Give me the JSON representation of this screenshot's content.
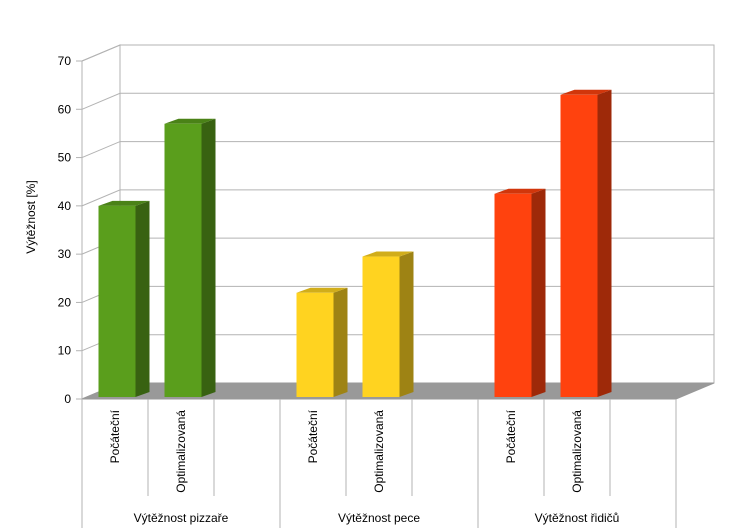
{
  "chart_data": {
    "type": "bar",
    "three_d": true,
    "ylabel": "Výtěžnost [%]",
    "ylim": [
      0,
      70
    ],
    "yticks": [
      0,
      10,
      20,
      30,
      40,
      50,
      60,
      70
    ],
    "grid": true,
    "legend": "none",
    "groups": [
      {
        "label": "Výtěžnost pizzaře",
        "color": "#5a9e1c",
        "bars": [
          {
            "label": "Počáteční",
            "value": 40
          },
          {
            "label": "Optimalizovaná",
            "value": 57
          }
        ]
      },
      {
        "label": "Výtěžnost pece",
        "color": "#ffd320",
        "bars": [
          {
            "label": "Počáteční",
            "value": 22
          },
          {
            "label": "Optimalizovaná",
            "value": 29.5
          }
        ]
      },
      {
        "label": "Výtěžnost řidičů",
        "color": "#ff420e",
        "bars": [
          {
            "label": "Počáteční",
            "value": 42.5
          },
          {
            "label": "Optimalizovaná",
            "value": 63
          }
        ]
      }
    ]
  }
}
